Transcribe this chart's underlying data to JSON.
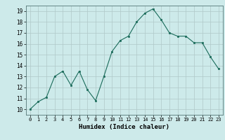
{
  "x": [
    0,
    1,
    2,
    3,
    4,
    5,
    6,
    7,
    8,
    9,
    10,
    11,
    12,
    13,
    14,
    15,
    16,
    17,
    18,
    19,
    20,
    21,
    22,
    23
  ],
  "y": [
    10.0,
    10.7,
    11.1,
    13.0,
    13.5,
    12.2,
    13.5,
    11.8,
    10.8,
    13.0,
    15.3,
    16.3,
    16.7,
    18.0,
    18.8,
    19.2,
    18.2,
    17.0,
    16.7,
    16.7,
    16.1,
    16.1,
    14.8,
    13.7
  ],
  "line_color": "#1a6b5a",
  "marker": "s",
  "marker_size": 2.0,
  "bg_color": "#cdeaea",
  "grid_color": "#b0c8c8",
  "xlabel": "Humidex (Indice chaleur)",
  "xlim": [
    -0.5,
    23.5
  ],
  "ylim": [
    9.5,
    19.5
  ],
  "yticks": [
    10,
    11,
    12,
    13,
    14,
    15,
    16,
    17,
    18,
    19
  ],
  "xticks": [
    0,
    1,
    2,
    3,
    4,
    5,
    6,
    7,
    8,
    9,
    10,
    11,
    12,
    13,
    14,
    15,
    16,
    17,
    18,
    19,
    20,
    21,
    22,
    23
  ]
}
